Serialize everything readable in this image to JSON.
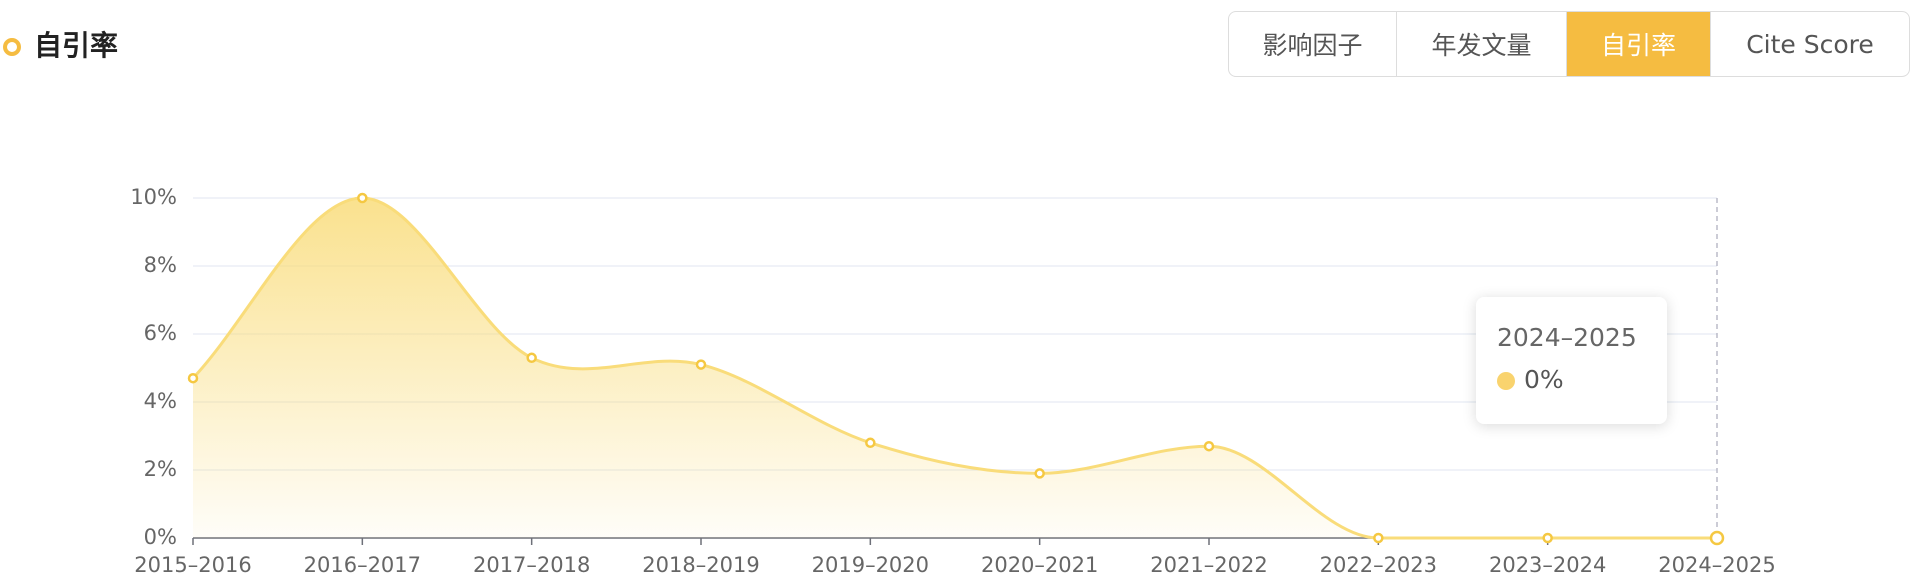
{
  "header": {
    "title": "自引率"
  },
  "tabs": [
    "影响因子",
    "年发文量",
    "自引率",
    "Cite Score"
  ],
  "chart_data": {
    "type": "line",
    "categories": [
      "2015–2016",
      "2016–2017",
      "2017–2018",
      "2018–2019",
      "2019–2020",
      "2020–2021",
      "2021–2022",
      "2022–2023",
      "2023–2024",
      "2024–2025"
    ],
    "series": [
      {
        "name": "自引率",
        "color": "#f9dc7a",
        "values": [
          4.7,
          10,
          5.3,
          5.1,
          2.8,
          1.9,
          2.7,
          0,
          0,
          0
        ]
      }
    ],
    "ylim": [
      0,
      10
    ],
    "yticks": [
      {
        "value": 0,
        "label": "0%"
      },
      {
        "value": 2,
        "label": "2%"
      },
      {
        "value": 4,
        "label": "4%"
      },
      {
        "value": 6,
        "label": "6%"
      },
      {
        "value": 8,
        "label": "8%"
      },
      {
        "value": 10,
        "label": "10%"
      }
    ],
    "grid": true,
    "smooth": true,
    "tooltip": {
      "title": "2024–2025",
      "value": "0%"
    }
  }
}
